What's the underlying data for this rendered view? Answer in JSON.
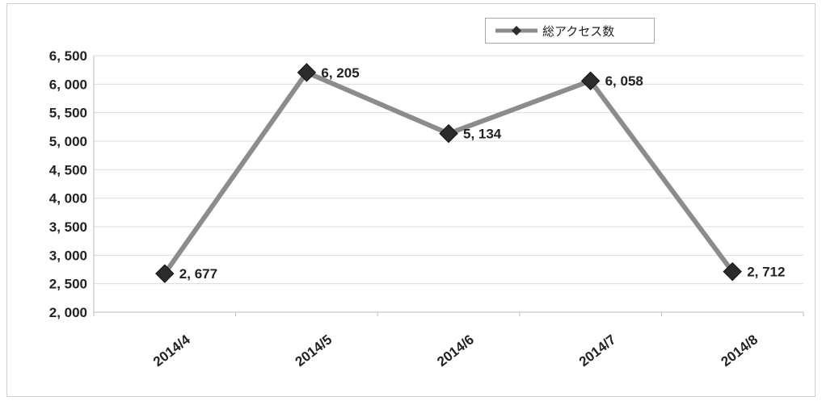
{
  "chart_data": {
    "type": "line",
    "title": "",
    "xlabel": "",
    "ylabel": "",
    "categories": [
      "2014/4",
      "2014/5",
      "2014/6",
      "2014/7",
      "2014/8"
    ],
    "series": [
      {
        "name": "総アクセス数",
        "values": [
          2677,
          6205,
          5134,
          6058,
          2712
        ]
      }
    ],
    "data_labels": [
      "2, 677",
      "6, 205",
      "5, 134",
      "6, 058",
      "2, 712"
    ],
    "y_ticks": [
      2000,
      2500,
      3000,
      3500,
      4000,
      4500,
      5000,
      5500,
      6000,
      6500
    ],
    "y_tick_labels": [
      "2, 000",
      "2, 500",
      "3, 000",
      "3, 500",
      "4, 000",
      "4, 500",
      "5, 000",
      "5, 500",
      "6, 000",
      "6, 500"
    ],
    "ylim": [
      2000,
      6500
    ],
    "grid": true,
    "legend_position": "top-right",
    "marker": "diamond",
    "line_color": "#8c8c8c",
    "marker_color": "#2b2b2b",
    "grid_color": "#dcdcdc"
  }
}
